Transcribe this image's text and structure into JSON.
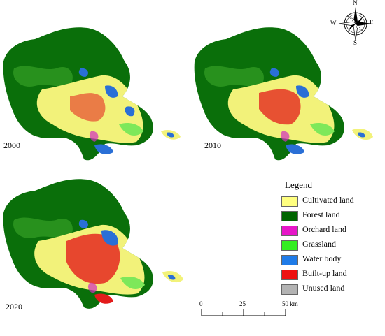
{
  "panels": [
    {
      "year": "2000"
    },
    {
      "year": "2010"
    },
    {
      "year": "2020"
    }
  ],
  "compass": {
    "n": "N",
    "s": "S",
    "e": "E",
    "w": "W"
  },
  "legend": {
    "title": "Legend",
    "items": [
      {
        "label": "Cultivated land",
        "color": "#ffff80"
      },
      {
        "label": "Forest land",
        "color": "#006400"
      },
      {
        "label": "Orchard land",
        "color": "#e617c8"
      },
      {
        "label": "Grassland",
        "color": "#33ee22"
      },
      {
        "label": "Water body",
        "color": "#1f7be8"
      },
      {
        "label": "Built-up land",
        "color": "#ee1111"
      },
      {
        "label": "Unused land",
        "color": "#b3b3b3"
      }
    ]
  },
  "scalebar": {
    "ticks": [
      "0",
      "25",
      "50 km"
    ]
  },
  "colors": {
    "forest": "#0a6f0a",
    "forest_light": "#2f9a22",
    "cultivated": "#f2f27a",
    "builtup": "#e31b1b",
    "water": "#2a6fd6",
    "grass": "#7ee85a",
    "orchard": "#d12cc0"
  }
}
